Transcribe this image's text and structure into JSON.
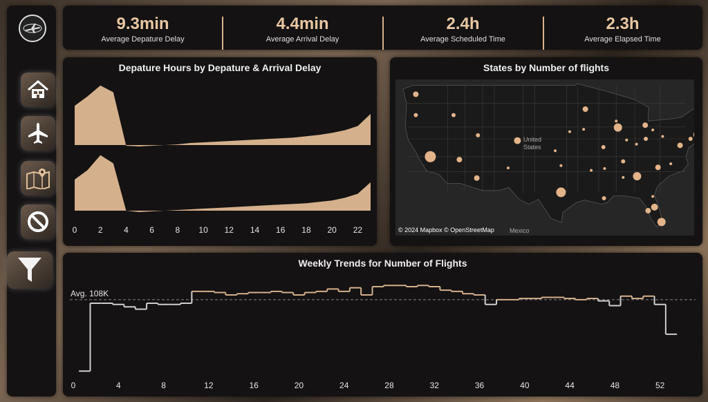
{
  "kpis": [
    {
      "value": "9.3min",
      "label": "Average Depature Delay"
    },
    {
      "value": "4.4min",
      "label": "Average Arrival Delay"
    },
    {
      "value": "2.4h",
      "label": "Average Scheduled Time"
    },
    {
      "value": "2.3h",
      "label": "Average Elapsed Time"
    }
  ],
  "sidebar": {
    "items": [
      {
        "icon": "home-icon"
      },
      {
        "icon": "airplane-icon"
      },
      {
        "icon": "map-icon"
      },
      {
        "icon": "ban-icon"
      },
      {
        "icon": "filter-icon"
      }
    ]
  },
  "delay_chart": {
    "title": "Depature Hours by  Depature & Arrival Delay"
  },
  "map": {
    "title": "States by Number of flights",
    "country_label": "United States",
    "mexico_label": "Mexico",
    "credit": "© 2024 Mapbox © OpenStreetMap"
  },
  "trend_chart": {
    "title": "Weekly Trends for Number of Flights",
    "avg_label": "Avg. 108K"
  },
  "colors": {
    "accent": "#d4b08c",
    "panel": "#141212",
    "line": "#cfcfcf"
  },
  "chart_data": [
    {
      "type": "area",
      "title": "Depature Hours by  Depature & Arrival Delay",
      "x": [
        0,
        1,
        2,
        3,
        4,
        5,
        6,
        7,
        8,
        9,
        10,
        11,
        12,
        13,
        14,
        15,
        16,
        17,
        18,
        19,
        20,
        21,
        22,
        23
      ],
      "xticks": [
        0,
        2,
        4,
        6,
        8,
        10,
        12,
        14,
        16,
        18,
        20,
        22
      ],
      "series": [
        {
          "values": [
            58,
            72,
            88,
            78,
            -1,
            -2,
            -1,
            0,
            1,
            3,
            4,
            5,
            6,
            7,
            8,
            9,
            10,
            11,
            13,
            15,
            18,
            22,
            28,
            46
          ]
        },
        {
          "values": [
            46,
            60,
            82,
            70,
            0,
            -2,
            -1,
            0,
            1,
            2,
            3,
            4,
            5,
            6,
            7,
            8,
            9,
            10,
            11,
            13,
            15,
            19,
            25,
            42
          ]
        }
      ]
    },
    {
      "type": "line",
      "title": "Weekly Trends for Number of Flights",
      "x": [
        1,
        2,
        3,
        4,
        5,
        6,
        7,
        8,
        9,
        10,
        11,
        12,
        13,
        14,
        15,
        16,
        17,
        18,
        19,
        20,
        21,
        22,
        23,
        24,
        25,
        26,
        27,
        28,
        29,
        30,
        31,
        32,
        33,
        34,
        35,
        36,
        37,
        38,
        39,
        40,
        41,
        42,
        43,
        44,
        45,
        46,
        47,
        48,
        49,
        50,
        51,
        52,
        53
      ],
      "xticks": [
        0,
        4,
        8,
        12,
        16,
        20,
        24,
        28,
        32,
        36,
        40,
        44,
        48,
        52
      ],
      "values": [
        48,
        105,
        105,
        104,
        102,
        100,
        105,
        104,
        104,
        105,
        115,
        115,
        114,
        112,
        113,
        114,
        114,
        115,
        114,
        112,
        114,
        115,
        117,
        115,
        118,
        112,
        119,
        120,
        120,
        119,
        120,
        119,
        116,
        115,
        113,
        112,
        104,
        108,
        108,
        109,
        109,
        110,
        110,
        109,
        108,
        109,
        107,
        103,
        111,
        109,
        111,
        104,
        79
      ],
      "average": 108,
      "avg_label": "Avg. 108K",
      "ylim": [
        40,
        130
      ]
    }
  ],
  "map_points": [
    {
      "lon": -122.5,
      "lat": 47.5,
      "r": 4
    },
    {
      "lon": -122.5,
      "lat": 44,
      "r": 3
    },
    {
      "lon": -120,
      "lat": 37,
      "r": 8
    },
    {
      "lon": -116,
      "lat": 44,
      "r": 3
    },
    {
      "lon": -115,
      "lat": 36.5,
      "r": 4
    },
    {
      "lon": -111.8,
      "lat": 40.6,
      "r": 3
    },
    {
      "lon": -112,
      "lat": 33.4,
      "r": 4
    },
    {
      "lon": -105,
      "lat": 39.7,
      "r": 5
    },
    {
      "lon": -106.6,
      "lat": 35.1,
      "r": 2
    },
    {
      "lon": -97.5,
      "lat": 31,
      "r": 7
    },
    {
      "lon": -97.5,
      "lat": 35.5,
      "r": 2
    },
    {
      "lon": -98.5,
      "lat": 38,
      "r": 2
    },
    {
      "lon": -96,
      "lat": 41.2,
      "r": 2
    },
    {
      "lon": -93.3,
      "lat": 45,
      "r": 4
    },
    {
      "lon": -93.6,
      "lat": 41.6,
      "r": 2
    },
    {
      "lon": -92.3,
      "lat": 34.7,
      "r": 2
    },
    {
      "lon": -90.2,
      "lat": 38.6,
      "r": 3
    },
    {
      "lon": -90,
      "lat": 35,
      "r": 2
    },
    {
      "lon": -90.1,
      "lat": 30,
      "r": 3
    },
    {
      "lon": -87.7,
      "lat": 41.9,
      "r": 6
    },
    {
      "lon": -88,
      "lat": 43,
      "r": 2
    },
    {
      "lon": -86.2,
      "lat": 39.8,
      "r": 2
    },
    {
      "lon": -86.8,
      "lat": 36.2,
      "r": 3
    },
    {
      "lon": -86.8,
      "lat": 33.5,
      "r": 2
    },
    {
      "lon": -84.4,
      "lat": 33.7,
      "r": 6
    },
    {
      "lon": -83,
      "lat": 42.3,
      "r": 4
    },
    {
      "lon": -82.9,
      "lat": 40,
      "r": 3
    },
    {
      "lon": -84.5,
      "lat": 39.1,
      "r": 2
    },
    {
      "lon": -81.7,
      "lat": 41.5,
      "r": 2
    },
    {
      "lon": -80.8,
      "lat": 35.2,
      "r": 4
    },
    {
      "lon": -78.6,
      "lat": 35.8,
      "r": 2
    },
    {
      "lon": -80,
      "lat": 40.4,
      "r": 2
    },
    {
      "lon": -77,
      "lat": 38.9,
      "r": 4
    },
    {
      "lon": -75.2,
      "lat": 40,
      "r": 3
    },
    {
      "lon": -74,
      "lat": 40.7,
      "r": 6
    },
    {
      "lon": -71,
      "lat": 42.4,
      "r": 4
    },
    {
      "lon": -73.8,
      "lat": 42.7,
      "r": 2
    },
    {
      "lon": -81.4,
      "lat": 28.5,
      "r": 5
    },
    {
      "lon": -80.2,
      "lat": 26,
      "r": 6
    },
    {
      "lon": -82.5,
      "lat": 27.9,
      "r": 4
    },
    {
      "lon": -81.7,
      "lat": 30.3,
      "r": 2
    },
    {
      "lon": -68.8,
      "lat": 44.8,
      "r": 1.5
    },
    {
      "lon": -72.6,
      "lat": 44.5,
      "r": 1.5
    }
  ]
}
